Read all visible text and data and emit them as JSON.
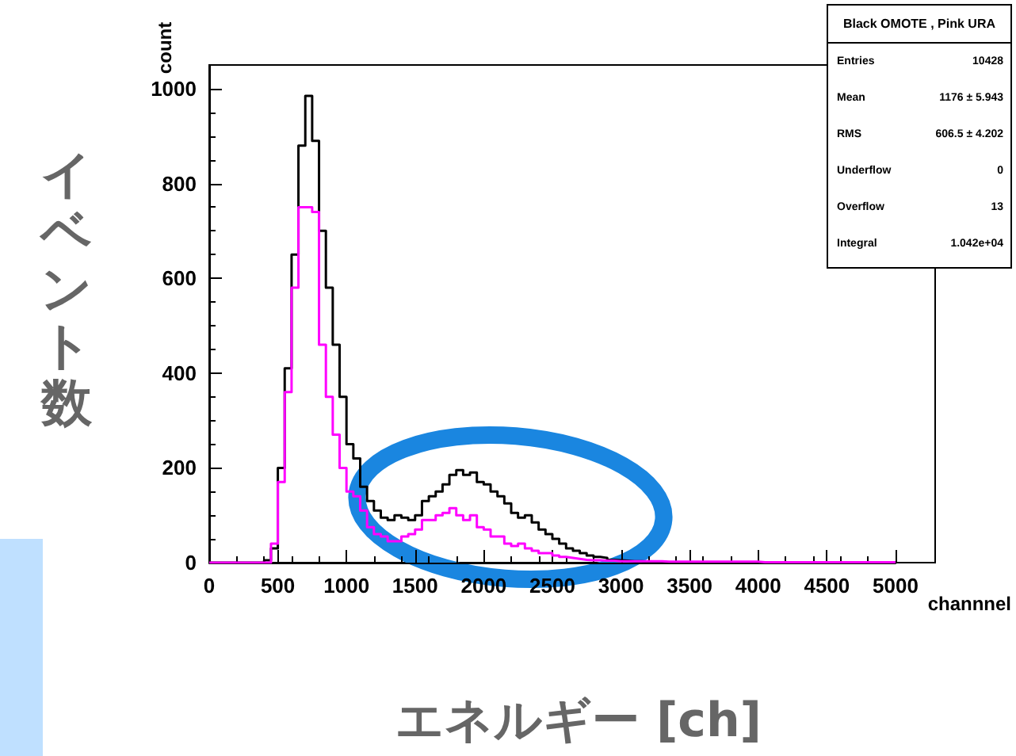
{
  "chart_data": {
    "type": "histogram",
    "title": "Black OMOTE , Pink URA",
    "xlabel": "channnel",
    "ylabel": "count",
    "bins": [
      0,
      50,
      100,
      150,
      200,
      250,
      300,
      350,
      400,
      450,
      500,
      550,
      600,
      650,
      700,
      750,
      800,
      850,
      900,
      950,
      1000,
      1050,
      1100,
      1150,
      1200,
      1250,
      1300,
      1350,
      1400,
      1450,
      1500,
      1550,
      1600,
      1650,
      1700,
      1750,
      1800,
      1850,
      1900,
      1950,
      2000,
      2050,
      2100,
      2150,
      2200,
      2250,
      2300,
      2350,
      2400,
      2450,
      2500,
      2550,
      2600,
      2650,
      2700,
      2750,
      2800,
      2850,
      2900,
      2950,
      3000,
      3050,
      3100,
      3150,
      3200,
      3250,
      3300,
      3350,
      3400,
      3450,
      3500,
      3550,
      3600,
      3650,
      3700,
      3750,
      3800,
      3850,
      3900,
      3950,
      4000,
      4050,
      4100,
      4150,
      4200,
      4250,
      4300,
      4350,
      4400,
      4450,
      4500,
      4550,
      4600,
      4650,
      4700,
      4750,
      4800,
      4850,
      4900,
      4950,
      5000
    ],
    "series": [
      {
        "color": "#000000",
        "values": [
          0,
          0,
          0,
          0,
          0,
          0,
          0,
          0,
          5,
          30,
          200,
          410,
          650,
          880,
          985,
          890,
          700,
          580,
          460,
          350,
          250,
          220,
          160,
          130,
          110,
          95,
          90,
          100,
          95,
          90,
          100,
          130,
          140,
          150,
          165,
          185,
          195,
          185,
          190,
          170,
          165,
          150,
          140,
          125,
          105,
          95,
          100,
          85,
          70,
          60,
          50,
          40,
          30,
          25,
          20,
          15,
          12,
          10,
          6,
          5,
          4,
          3,
          3,
          2,
          2,
          1,
          1,
          1,
          0,
          0,
          0,
          0,
          0,
          0,
          0,
          0,
          0,
          0,
          0,
          0,
          0,
          0,
          0,
          0,
          0,
          0,
          0,
          0,
          0,
          0,
          0,
          0,
          0,
          0,
          0,
          0,
          0,
          0,
          0,
          0
        ]
      },
      {
        "color": "#ff00ff",
        "values": [
          0,
          0,
          0,
          0,
          0,
          0,
          0,
          0,
          0,
          40,
          170,
          360,
          580,
          750,
          750,
          740,
          460,
          350,
          270,
          200,
          150,
          140,
          110,
          75,
          60,
          55,
          45,
          45,
          55,
          60,
          70,
          90,
          90,
          100,
          105,
          115,
          100,
          90,
          100,
          75,
          70,
          55,
          55,
          40,
          35,
          40,
          30,
          25,
          20,
          20,
          15,
          12,
          10,
          8,
          6,
          5,
          5,
          4,
          4,
          3,
          3,
          3,
          3,
          3,
          3,
          3,
          2,
          2,
          2,
          2,
          2,
          2,
          2,
          2,
          2,
          2,
          2,
          2,
          2,
          2,
          1,
          1,
          1,
          1,
          1,
          1,
          1,
          1,
          1,
          1,
          1,
          1,
          1,
          1,
          1,
          1,
          1,
          1,
          1,
          1
        ]
      }
    ],
    "xlim": [
      0,
      5000
    ],
    "xticks": [
      0,
      500,
      1000,
      1500,
      2000,
      2500,
      3000,
      3500,
      4000,
      4500,
      5000
    ],
    "ylim": [
      0,
      1050
    ],
    "yticks": [
      0,
      200,
      400,
      600,
      800,
      1000
    ],
    "grid": false,
    "annotations": [
      "Entries",
      "10428",
      "Mean",
      "1176 ± 5.943",
      "RMS",
      "606.5 ± 4.202",
      "Underflow",
      "0",
      "Overflow",
      "13",
      "Integral",
      "1.042e+04",
      "イベント数",
      "エネルギー [ch]"
    ]
  }
}
